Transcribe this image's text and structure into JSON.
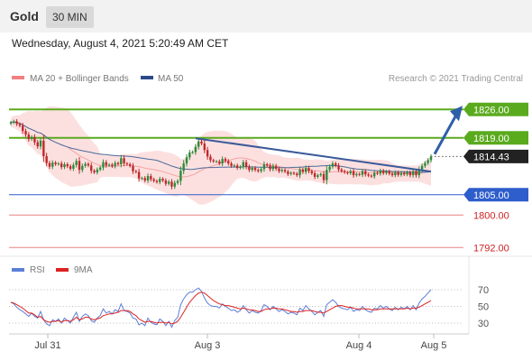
{
  "header": {
    "title": "Gold",
    "timeframe": "30 MIN"
  },
  "datetime": "Wednesday, August 4, 2021 5:20:49 AM CET",
  "legend": {
    "ma20": {
      "label": "MA 20 + Bollinger Bands",
      "color": "#f08080"
    },
    "ma50": {
      "label": "MA 50",
      "color": "#2c4a8a"
    }
  },
  "source": "Research © 2021 Trading Central",
  "colors": {
    "up": "#2e8b3a",
    "down": "#c0282a",
    "band": "#fbd5d5",
    "ma50": "#4a6a9a",
    "resistance": "#5aaa1e",
    "support": "#2e5dcc",
    "minor": "#e05050",
    "trendline": "#3a5a9a",
    "arrow": "#2f5fa8",
    "current": "#222222",
    "rsi": "#5b7fd6",
    "rsi_ma": "#dd2222"
  },
  "chart_data": {
    "type": "candlestick",
    "price_axis": {
      "min": 1788.5,
      "max": 1828.5
    },
    "x_ticks": [
      "Jul 31",
      "Aug 3",
      "Aug 4",
      "Aug 5"
    ],
    "levels": [
      {
        "label": "1826.00",
        "value": 1826.0,
        "kind": "resistance"
      },
      {
        "label": "1819.00",
        "value": 1819.0,
        "kind": "resistance"
      },
      {
        "label": "1814.43",
        "value": 1814.43,
        "kind": "current"
      },
      {
        "label": "1805.00",
        "value": 1805.0,
        "kind": "support"
      },
      {
        "label": "1800.00",
        "value": 1800.0,
        "kind": "minor"
      },
      {
        "label": "1792.00",
        "value": 1792.0,
        "kind": "minor"
      }
    ],
    "trendline": {
      "from": 1818.9,
      "to": 1810.7
    },
    "forecast_arrow": {
      "from": 1815.0,
      "to": 1826.0
    },
    "closes": [
      1822.8,
      1823.1,
      1822.4,
      1822.0,
      1820.7,
      1819.8,
      1818.7,
      1819.2,
      1817.9,
      1816.9,
      1818.3,
      1814.5,
      1812.8,
      1811.9,
      1812.9,
      1812.5,
      1812.7,
      1811.8,
      1812.5,
      1812.0,
      1811.4,
      1812.3,
      1813.3,
      1811.1,
      1812.1,
      1812.6,
      1812.2,
      1810.9,
      1810.5,
      1811.2,
      1811.7,
      1813.0,
      1812.2,
      1812.4,
      1812.0,
      1812.8,
      1812.5,
      1814.0,
      1812.7,
      1812.5,
      1812.1,
      1810.8,
      1810.6,
      1809.0,
      1809.1,
      1808.5,
      1809.6,
      1808.8,
      1808.4,
      1808.1,
      1808.9,
      1808.5,
      1807.7,
      1808.2,
      1807.0,
      1807.9,
      1808.4,
      1810.9,
      1812.7,
      1814.2,
      1815.4,
      1815.5,
      1816.8,
      1818.1,
      1817.6,
      1816.0,
      1814.4,
      1813.5,
      1813.2,
      1813.2,
      1812.7,
      1813.8,
      1813.3,
      1812.7,
      1812.1,
      1812.2,
      1811.6,
      1811.9,
      1813.0,
      1811.9,
      1811.1,
      1811.6,
      1811.1,
      1810.8,
      1811.3,
      1812.5,
      1812.2,
      1811.3,
      1812.1,
      1811.4,
      1810.8,
      1811.1,
      1810.7,
      1810.1,
      1810.4,
      1810.2,
      1809.8,
      1811.2,
      1810.6,
      1811.6,
      1810.8,
      1810.3,
      1809.4,
      1809.8,
      1810.1,
      1808.6,
      1811.1,
      1811.9,
      1812.7,
      1812.2,
      1811.2,
      1810.8,
      1810.5,
      1810.3,
      1810.8,
      1809.8,
      1810.1,
      1809.9,
      1810.8,
      1810.0,
      1809.7,
      1809.5,
      1810.4,
      1810.2,
      1810.9,
      1810.3,
      1810.7,
      1810.2,
      1809.8,
      1810.5,
      1809.9,
      1810.4,
      1810.0,
      1810.5,
      1809.8,
      1810.8,
      1809.8,
      1811.2,
      1812.1,
      1812.8,
      1813.5,
      1814.4
    ],
    "rsi": {
      "label": "RSI",
      "ma_label": "9MA",
      "levels": [
        70,
        50,
        30
      ],
      "values": [
        55,
        53,
        49,
        46,
        44,
        41,
        38,
        42,
        38,
        36,
        44,
        34,
        29,
        27,
        34,
        32,
        35,
        30,
        36,
        33,
        30,
        37,
        43,
        32,
        38,
        41,
        39,
        33,
        31,
        36,
        39,
        47,
        42,
        44,
        41,
        46,
        44,
        53,
        45,
        44,
        42,
        36,
        35,
        28,
        30,
        27,
        36,
        31,
        29,
        28,
        35,
        32,
        27,
        32,
        25,
        33,
        37,
        52,
        59,
        64,
        67,
        67,
        70,
        72,
        68,
        60,
        54,
        51,
        50,
        50,
        48,
        53,
        50,
        48,
        45,
        46,
        43,
        45,
        51,
        46,
        42,
        45,
        43,
        42,
        45,
        52,
        50,
        46,
        50,
        47,
        44,
        46,
        44,
        41,
        43,
        42,
        40,
        48,
        45,
        51,
        47,
        44,
        40,
        43,
        45,
        38,
        52,
        55,
        58,
        55,
        50,
        48,
        47,
        46,
        49,
        44,
        46,
        45,
        50,
        46,
        44,
        43,
        48,
        47,
        51,
        48,
        50,
        47,
        45,
        49,
        46,
        49,
        47,
        50,
        46,
        51,
        46,
        54,
        59,
        62,
        66,
        70
      ],
      "ma": [
        55,
        54,
        52,
        50,
        48,
        45,
        42,
        42,
        40,
        37,
        38,
        34,
        32,
        31,
        32,
        32,
        33,
        31,
        33,
        33,
        32,
        34,
        37,
        34,
        35,
        37,
        37,
        35,
        34,
        35,
        36,
        39,
        40,
        41,
        41,
        42,
        43,
        45,
        45,
        45,
        44,
        41,
        39,
        35,
        33,
        31,
        32,
        32,
        31,
        30,
        31,
        31,
        30,
        31,
        29,
        30,
        32,
        37,
        43,
        49,
        55,
        59,
        63,
        66,
        67,
        66,
        63,
        60,
        57,
        55,
        53,
        52,
        51,
        51,
        50,
        49,
        48,
        47,
        48,
        47,
        46,
        46,
        45,
        44,
        44,
        46,
        47,
        47,
        48,
        48,
        47,
        47,
        46,
        45,
        44,
        44,
        43,
        44,
        44,
        45,
        45,
        45,
        44,
        43,
        43,
        42,
        44,
        46,
        48,
        50,
        51,
        51,
        50,
        49,
        49,
        48,
        47,
        47,
        47,
        47,
        47,
        46,
        46,
        46,
        47,
        47,
        47,
        47,
        47,
        47,
        47,
        47,
        47,
        48,
        47,
        48,
        48,
        49,
        51,
        53,
        55,
        57
      ]
    }
  }
}
